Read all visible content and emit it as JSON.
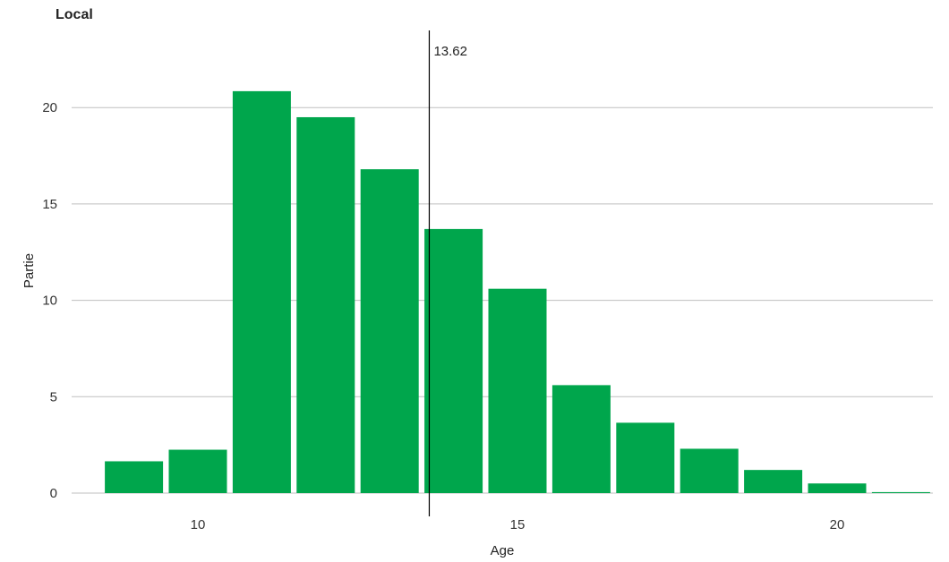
{
  "chart_data": {
    "type": "bar",
    "title": "Local",
    "xlabel": "Age",
    "ylabel": "Partie",
    "xlim": [
      8.3,
      21.7
    ],
    "ylim": [
      0,
      22
    ],
    "xticks": [
      10,
      15,
      20
    ],
    "yticks": [
      0,
      5,
      10,
      15,
      20
    ],
    "grid": "horizontal",
    "colors": {
      "bar": "#00a64c",
      "grid": "#bfbfbf",
      "refline": "#000000"
    },
    "bars": [
      {
        "x": 9,
        "value": 1.65
      },
      {
        "x": 10,
        "value": 2.25
      },
      {
        "x": 11,
        "value": 20.85
      },
      {
        "x": 12,
        "value": 19.5
      },
      {
        "x": 13,
        "value": 16.8
      },
      {
        "x": 14,
        "value": 13.7
      },
      {
        "x": 15,
        "value": 10.6
      },
      {
        "x": 16,
        "value": 5.6
      },
      {
        "x": 17,
        "value": 3.65
      },
      {
        "x": 18,
        "value": 2.3
      },
      {
        "x": 19,
        "value": 1.2
      },
      {
        "x": 20,
        "value": 0.5
      },
      {
        "x": 21,
        "value": 0.05
      }
    ],
    "reference_line": {
      "x": 13.62,
      "label": "13.62"
    }
  }
}
